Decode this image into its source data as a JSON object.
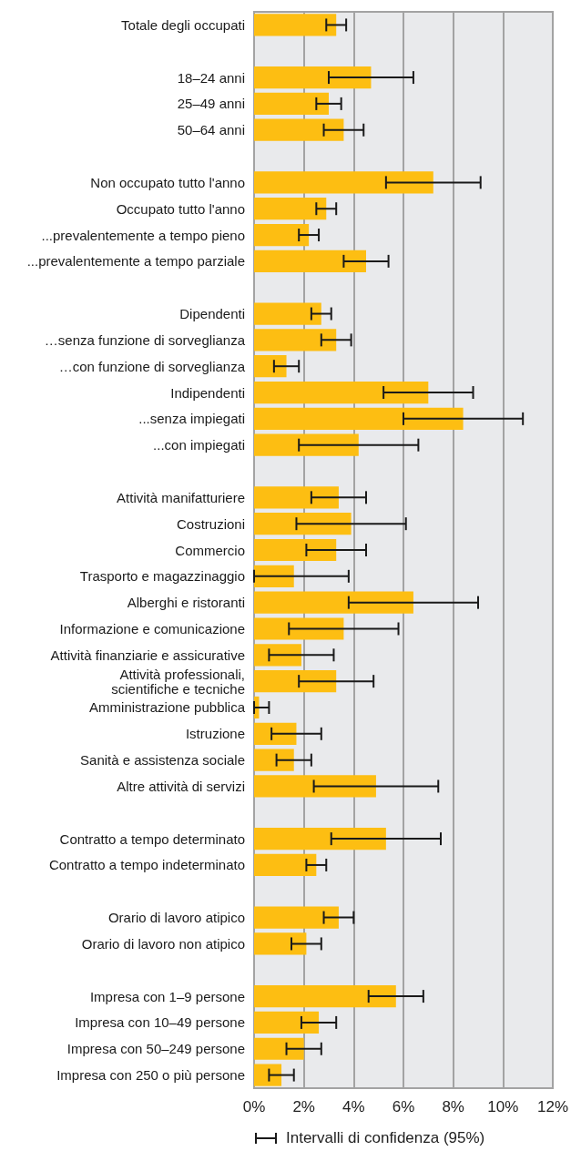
{
  "chart_data": {
    "type": "bar",
    "orientation": "horizontal",
    "categories": [
      "Totale degli occupati",
      null,
      "18–24 anni",
      "25–49 anni",
      "50–64 anni",
      null,
      "Non occupato tutto l'anno",
      "Occupato tutto l'anno",
      "...prevalentemente a tempo pieno",
      "...prevalentemente a tempo parziale",
      null,
      "Dipendenti",
      "…senza funzione di sorveglianza",
      "…con funzione di sorveglianza",
      "Indipendenti",
      "...senza impiegati",
      "...con impiegati",
      null,
      "Attività manifatturiere",
      "Costruzioni",
      "Commercio",
      "Trasporto e magazzinaggio",
      "Alberghi e ristoranti",
      "Informazione e comunicazione",
      "Attività finanziarie e assicurative",
      "Attività professionali,\nscientifiche e tecniche",
      "Amministrazione pubblica",
      "Istruzione",
      "Sanità e assistenza sociale",
      "Altre attività di servizi",
      null,
      "Contratto a tempo determinato",
      "Contratto a tempo indeterminato",
      null,
      "Orario di lavoro atipico",
      "Orario di lavoro non atipico",
      null,
      "Impresa con 1–9 persone",
      "Impresa con 10–49 persone",
      "Impresa con 50–249 persone",
      "Impresa con 250 o più persone"
    ],
    "values": [
      3.3,
      null,
      4.7,
      3.0,
      3.6,
      null,
      7.2,
      2.9,
      2.2,
      4.5,
      null,
      2.7,
      3.3,
      1.3,
      7.0,
      8.4,
      4.2,
      null,
      3.4,
      3.9,
      3.3,
      1.6,
      6.4,
      3.6,
      1.9,
      3.3,
      0.2,
      1.7,
      1.6,
      4.9,
      null,
      5.3,
      2.5,
      null,
      3.4,
      2.1,
      null,
      5.7,
      2.6,
      2.0,
      1.1
    ],
    "errors": [
      [
        2.9,
        3.7
      ],
      null,
      [
        3.0,
        6.4
      ],
      [
        2.5,
        3.5
      ],
      [
        2.8,
        4.4
      ],
      null,
      [
        5.3,
        9.1
      ],
      [
        2.5,
        3.3
      ],
      [
        1.8,
        2.6
      ],
      [
        3.6,
        5.4
      ],
      null,
      [
        2.3,
        3.1
      ],
      [
        2.7,
        3.9
      ],
      [
        0.8,
        1.8
      ],
      [
        5.2,
        8.8
      ],
      [
        6.0,
        10.8
      ],
      [
        1.8,
        6.6
      ],
      null,
      [
        2.3,
        4.5
      ],
      [
        1.7,
        6.1
      ],
      [
        2.1,
        4.5
      ],
      [
        0.0,
        3.8
      ],
      [
        3.8,
        9.0
      ],
      [
        1.4,
        5.8
      ],
      [
        0.6,
        3.2
      ],
      [
        1.8,
        4.8
      ],
      [
        0.0,
        0.6
      ],
      [
        0.7,
        2.7
      ],
      [
        0.9,
        2.3
      ],
      [
        2.4,
        7.4
      ],
      null,
      [
        3.1,
        7.5
      ],
      [
        2.1,
        2.9
      ],
      null,
      [
        2.8,
        4.0
      ],
      [
        1.5,
        2.7
      ],
      null,
      [
        4.6,
        6.8
      ],
      [
        1.9,
        3.3
      ],
      [
        1.3,
        2.7
      ],
      [
        0.6,
        1.6
      ]
    ],
    "color": "#fdbe12",
    "xlim": [
      0,
      12
    ],
    "xticks": [
      {
        "value": 0,
        "label": "0%"
      },
      {
        "value": 2,
        "label": "2%"
      },
      {
        "value": 4,
        "label": "4%"
      },
      {
        "value": 6,
        "label": "6%"
      },
      {
        "value": 8,
        "label": "8%"
      },
      {
        "value": 10,
        "label": "10%"
      },
      {
        "value": 12,
        "label": "12%"
      }
    ],
    "grid": "x",
    "annotations": [
      "Intervalli di confidenza (95%)"
    ]
  }
}
